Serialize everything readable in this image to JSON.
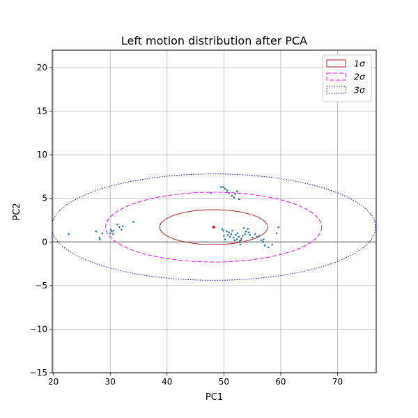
{
  "chart_data": {
    "type": "scatter",
    "title": "Left motion distribution after PCA",
    "xlabel": "PC1",
    "ylabel": "PC2",
    "xlim": [
      19.8,
      76.8
    ],
    "ylim": [
      -15,
      22
    ],
    "xticks": [
      20,
      30,
      40,
      50,
      60,
      70
    ],
    "yticks": [
      -15,
      -10,
      -5,
      0,
      5,
      10,
      15,
      20
    ],
    "grid": true,
    "legend_position": "top-right",
    "hline_y": 0,
    "mean": {
      "x": 48.2,
      "y": 1.7,
      "color": "#ff0000"
    },
    "points_color": "#1f77b4",
    "points": [
      [
        22.7,
        0.9
      ],
      [
        27.5,
        1.2
      ],
      [
        28.1,
        0.5
      ],
      [
        28.2,
        0.3
      ],
      [
        28.6,
        1.0
      ],
      [
        30.0,
        1.0
      ],
      [
        30.1,
        1.4
      ],
      [
        30.3,
        1.2
      ],
      [
        30.5,
        0.9
      ],
      [
        30.6,
        1.3
      ],
      [
        31.2,
        2.0
      ],
      [
        31.6,
        1.7
      ],
      [
        32.0,
        1.4
      ],
      [
        32.2,
        1.8
      ],
      [
        34.1,
        2.3
      ],
      [
        47.7,
        5.6
      ],
      [
        49.5,
        6.3
      ],
      [
        49.9,
        6.3
      ],
      [
        50.2,
        6.1
      ],
      [
        50.6,
        5.9
      ],
      [
        50.9,
        5.6
      ],
      [
        51.4,
        5.3
      ],
      [
        51.8,
        5.1
      ],
      [
        52.0,
        5.5
      ],
      [
        52.3,
        5.8
      ],
      [
        52.7,
        4.9
      ],
      [
        49.7,
        1.5
      ],
      [
        49.9,
        1.3
      ],
      [
        50.0,
        0.7
      ],
      [
        50.2,
        0.3
      ],
      [
        50.5,
        1.2
      ],
      [
        50.7,
        0.8
      ],
      [
        50.9,
        1.1
      ],
      [
        51.1,
        0.6
      ],
      [
        51.3,
        0.9
      ],
      [
        51.5,
        1.3
      ],
      [
        51.7,
        0.5
      ],
      [
        51.9,
        0.2
      ],
      [
        52.1,
        0.8
      ],
      [
        52.3,
        0.3
      ],
      [
        52.4,
        1.0
      ],
      [
        52.6,
        0.6
      ],
      [
        52.8,
        0.1
      ],
      [
        52.9,
        -0.3
      ],
      [
        53.1,
        0.4
      ],
      [
        53.3,
        0.7
      ],
      [
        53.5,
        1.6
      ],
      [
        53.7,
        0.9
      ],
      [
        53.9,
        1.2
      ],
      [
        54.2,
        1.5
      ],
      [
        54.4,
        1.1
      ],
      [
        54.6,
        0.8
      ],
      [
        55.0,
        0.5
      ],
      [
        55.5,
        0.9
      ],
      [
        56.2,
        0.7
      ],
      [
        56.6,
        0.2
      ],
      [
        57.0,
        0.3
      ],
      [
        57.2,
        -0.4
      ],
      [
        57.8,
        -0.6
      ],
      [
        58.5,
        -0.3
      ],
      [
        59.3,
        1.0
      ],
      [
        59.6,
        1.7
      ],
      [
        55.8,
        0.6
      ],
      [
        56.9,
        0.0
      ],
      [
        53.0,
        0.2
      ]
    ],
    "ellipses": [
      {
        "name": "1σ",
        "label_base": "1",
        "cx": 48.2,
        "cy": 1.7,
        "rx": 9.5,
        "ry": 2.0,
        "color": "#b22222",
        "dash": "none"
      },
      {
        "name": "2σ",
        "label_base": "2",
        "cx": 48.2,
        "cy": 1.7,
        "rx": 19.0,
        "ry": 4.0,
        "color": "#ff00ff",
        "dash": "6,3"
      },
      {
        "name": "3σ",
        "label_base": "3",
        "cx": 48.2,
        "cy": 1.7,
        "rx": 28.5,
        "ry": 6.1,
        "color": "#0000ff",
        "dash": "1.5,2"
      }
    ],
    "sigma_symbol": "σ"
  }
}
